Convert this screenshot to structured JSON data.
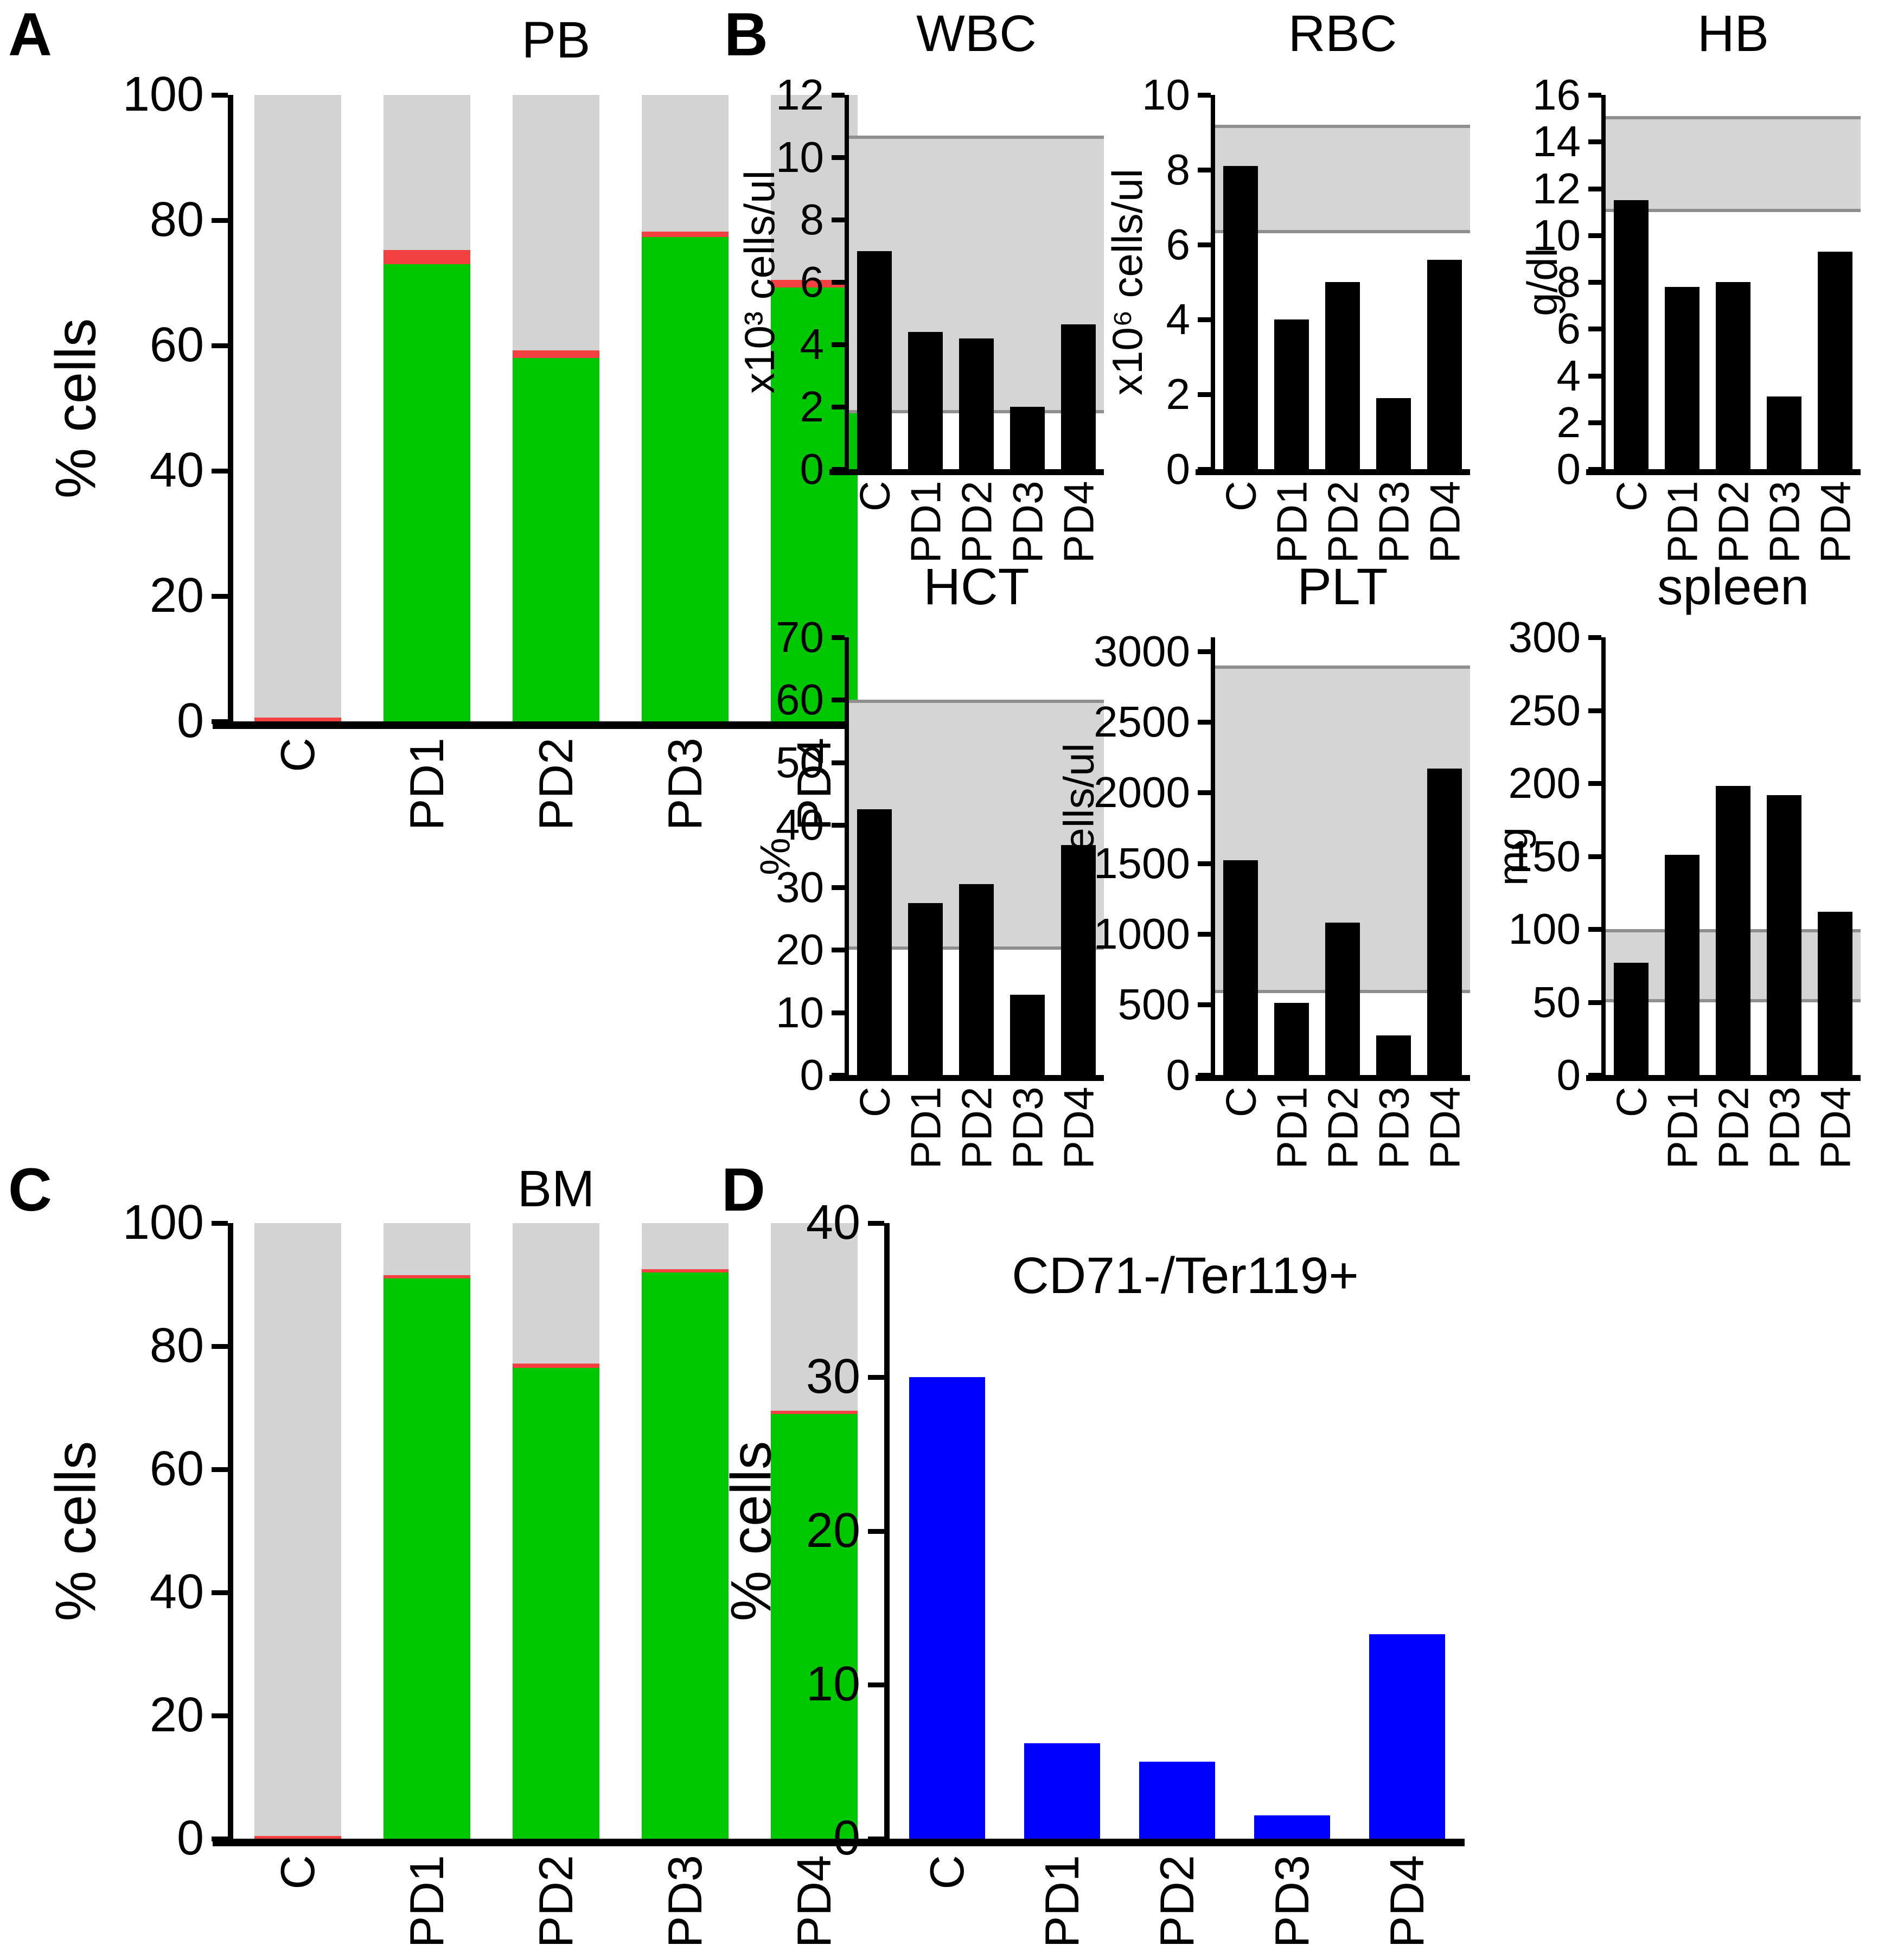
{
  "figure": {
    "panel_labels": [
      "A",
      "B",
      "C",
      "D"
    ]
  },
  "colors": {
    "green": "#00C800",
    "red": "#F44040",
    "blue": "#0000FF",
    "black": "#000000",
    "gray_bar": "#D3D3D3",
    "band_fill": "#D5D5D5",
    "band_line": "#8F8F8F",
    "axis": "#000000"
  },
  "chart_data": [
    {
      "id": "PB",
      "panel": "A",
      "type": "stacked-bar",
      "title": "PB",
      "ylabel": "% cells",
      "ylim": [
        0,
        100
      ],
      "yticks": [
        0,
        20,
        40,
        60,
        80,
        100
      ],
      "categories": [
        "C",
        "PD1",
        "PD2",
        "PD3",
        "PD4"
      ],
      "series": [
        {
          "name": "green-segment",
          "color_key": "green",
          "values": [
            0,
            73,
            58,
            77.3,
            69.3
          ]
        },
        {
          "name": "red-segment",
          "color_key": "red",
          "values": [
            0.6,
            2.2,
            1.2,
            0.9,
            1.2
          ]
        }
      ],
      "fill_remainder_to": 100,
      "remainder_color_key": "gray_bar",
      "legend": "none",
      "grid": "off"
    },
    {
      "id": "WBC",
      "panel": "B",
      "type": "bar",
      "title": "WBC",
      "ylabel": "x10³ cells/ul",
      "ylim": [
        0,
        12
      ],
      "yticks": [
        0,
        2,
        4,
        6,
        8,
        10,
        12
      ],
      "categories": [
        "C",
        "PD1",
        "PD2",
        "PD3",
        "PD4"
      ],
      "values": [
        7.0,
        4.4,
        4.2,
        2.0,
        4.65
      ],
      "normal_range": [
        1.8,
        10.7
      ],
      "bar_color_key": "black",
      "grid": "off"
    },
    {
      "id": "RBC",
      "panel": "B",
      "type": "bar",
      "title": "RBC",
      "ylabel": "x10⁶ cells/ul",
      "ylim": [
        0,
        10
      ],
      "yticks": [
        0,
        2,
        4,
        6,
        8,
        10
      ],
      "categories": [
        "C",
        "PD1",
        "PD2",
        "PD3",
        "PD4"
      ],
      "values": [
        8.1,
        4.0,
        5.0,
        1.9,
        5.6
      ],
      "normal_range": [
        6.3,
        9.2
      ],
      "bar_color_key": "black",
      "grid": "off"
    },
    {
      "id": "HB",
      "panel": "B",
      "type": "bar",
      "title": "HB",
      "ylabel": "g/dl",
      "ylim": [
        0,
        16
      ],
      "yticks": [
        0,
        2,
        4,
        6,
        8,
        10,
        12,
        14,
        16
      ],
      "categories": [
        "C",
        "PD1",
        "PD2",
        "PD3",
        "PD4"
      ],
      "values": [
        11.5,
        7.8,
        8.0,
        3.1,
        9.3
      ],
      "normal_range": [
        11.0,
        15.1
      ],
      "bar_color_key": "black",
      "grid": "off"
    },
    {
      "id": "HCT",
      "panel": "B",
      "type": "bar",
      "title": "HCT",
      "ylabel": "%",
      "ylim": [
        0,
        70
      ],
      "yticks": [
        0,
        10,
        20,
        30,
        40,
        50,
        60,
        70
      ],
      "categories": [
        "C",
        "PD1",
        "PD2",
        "PD3",
        "PD4"
      ],
      "values": [
        42.5,
        27.5,
        30.5,
        12.8,
        36.8
      ],
      "normal_range": [
        20,
        60
      ],
      "bar_color_key": "black",
      "grid": "off"
    },
    {
      "id": "PLT",
      "panel": "B",
      "type": "bar",
      "title": "PLT",
      "ylabel": "x10⁶ cells/ul",
      "ylim": [
        0,
        3100
      ],
      "yticks": [
        0,
        500,
        1000,
        1500,
        2000,
        2500,
        3000
      ],
      "categories": [
        "C",
        "PD1",
        "PD2",
        "PD3",
        "PD4"
      ],
      "values": [
        1520,
        510,
        1080,
        280,
        2170
      ],
      "normal_range": [
        580,
        2900
      ],
      "bar_color_key": "black",
      "grid": "off"
    },
    {
      "id": "spleen",
      "panel": "B",
      "type": "bar",
      "title": "spleen",
      "ylabel": "mg",
      "ylim": [
        0,
        300
      ],
      "yticks": [
        0,
        50,
        100,
        150,
        200,
        250,
        300
      ],
      "categories": [
        "C",
        "PD1",
        "PD2",
        "PD3",
        "PD4"
      ],
      "values": [
        77,
        151,
        198,
        192,
        112
      ],
      "normal_range": [
        50,
        100
      ],
      "bar_color_key": "black",
      "grid": "off"
    },
    {
      "id": "BM",
      "panel": "C",
      "type": "stacked-bar",
      "title": "BM",
      "ylabel": "% cells",
      "ylim": [
        0,
        100
      ],
      "yticks": [
        0,
        20,
        40,
        60,
        80,
        100
      ],
      "categories": [
        "C",
        "PD1",
        "PD2",
        "PD3",
        "PD4"
      ],
      "series": [
        {
          "name": "green-segment",
          "color_key": "green",
          "values": [
            0,
            91,
            76.5,
            92,
            69
          ]
        },
        {
          "name": "red-segment",
          "color_key": "red",
          "values": [
            0.4,
            0.5,
            0.7,
            0.5,
            0.5
          ]
        }
      ],
      "fill_remainder_to": 100,
      "remainder_color_key": "gray_bar",
      "legend": "none",
      "grid": "off"
    },
    {
      "id": "CD71",
      "panel": "D",
      "type": "bar",
      "title": "CD71-/Ter119+",
      "ylabel": "% cells",
      "ylim": [
        0,
        40
      ],
      "yticks": [
        0,
        10,
        20,
        30,
        40
      ],
      "categories": [
        "C",
        "PD1",
        "PD2",
        "PD3",
        "PD4"
      ],
      "values": [
        30,
        6.2,
        5.0,
        1.5,
        13.3
      ],
      "bar_color_key": "blue",
      "grid": "off"
    }
  ]
}
